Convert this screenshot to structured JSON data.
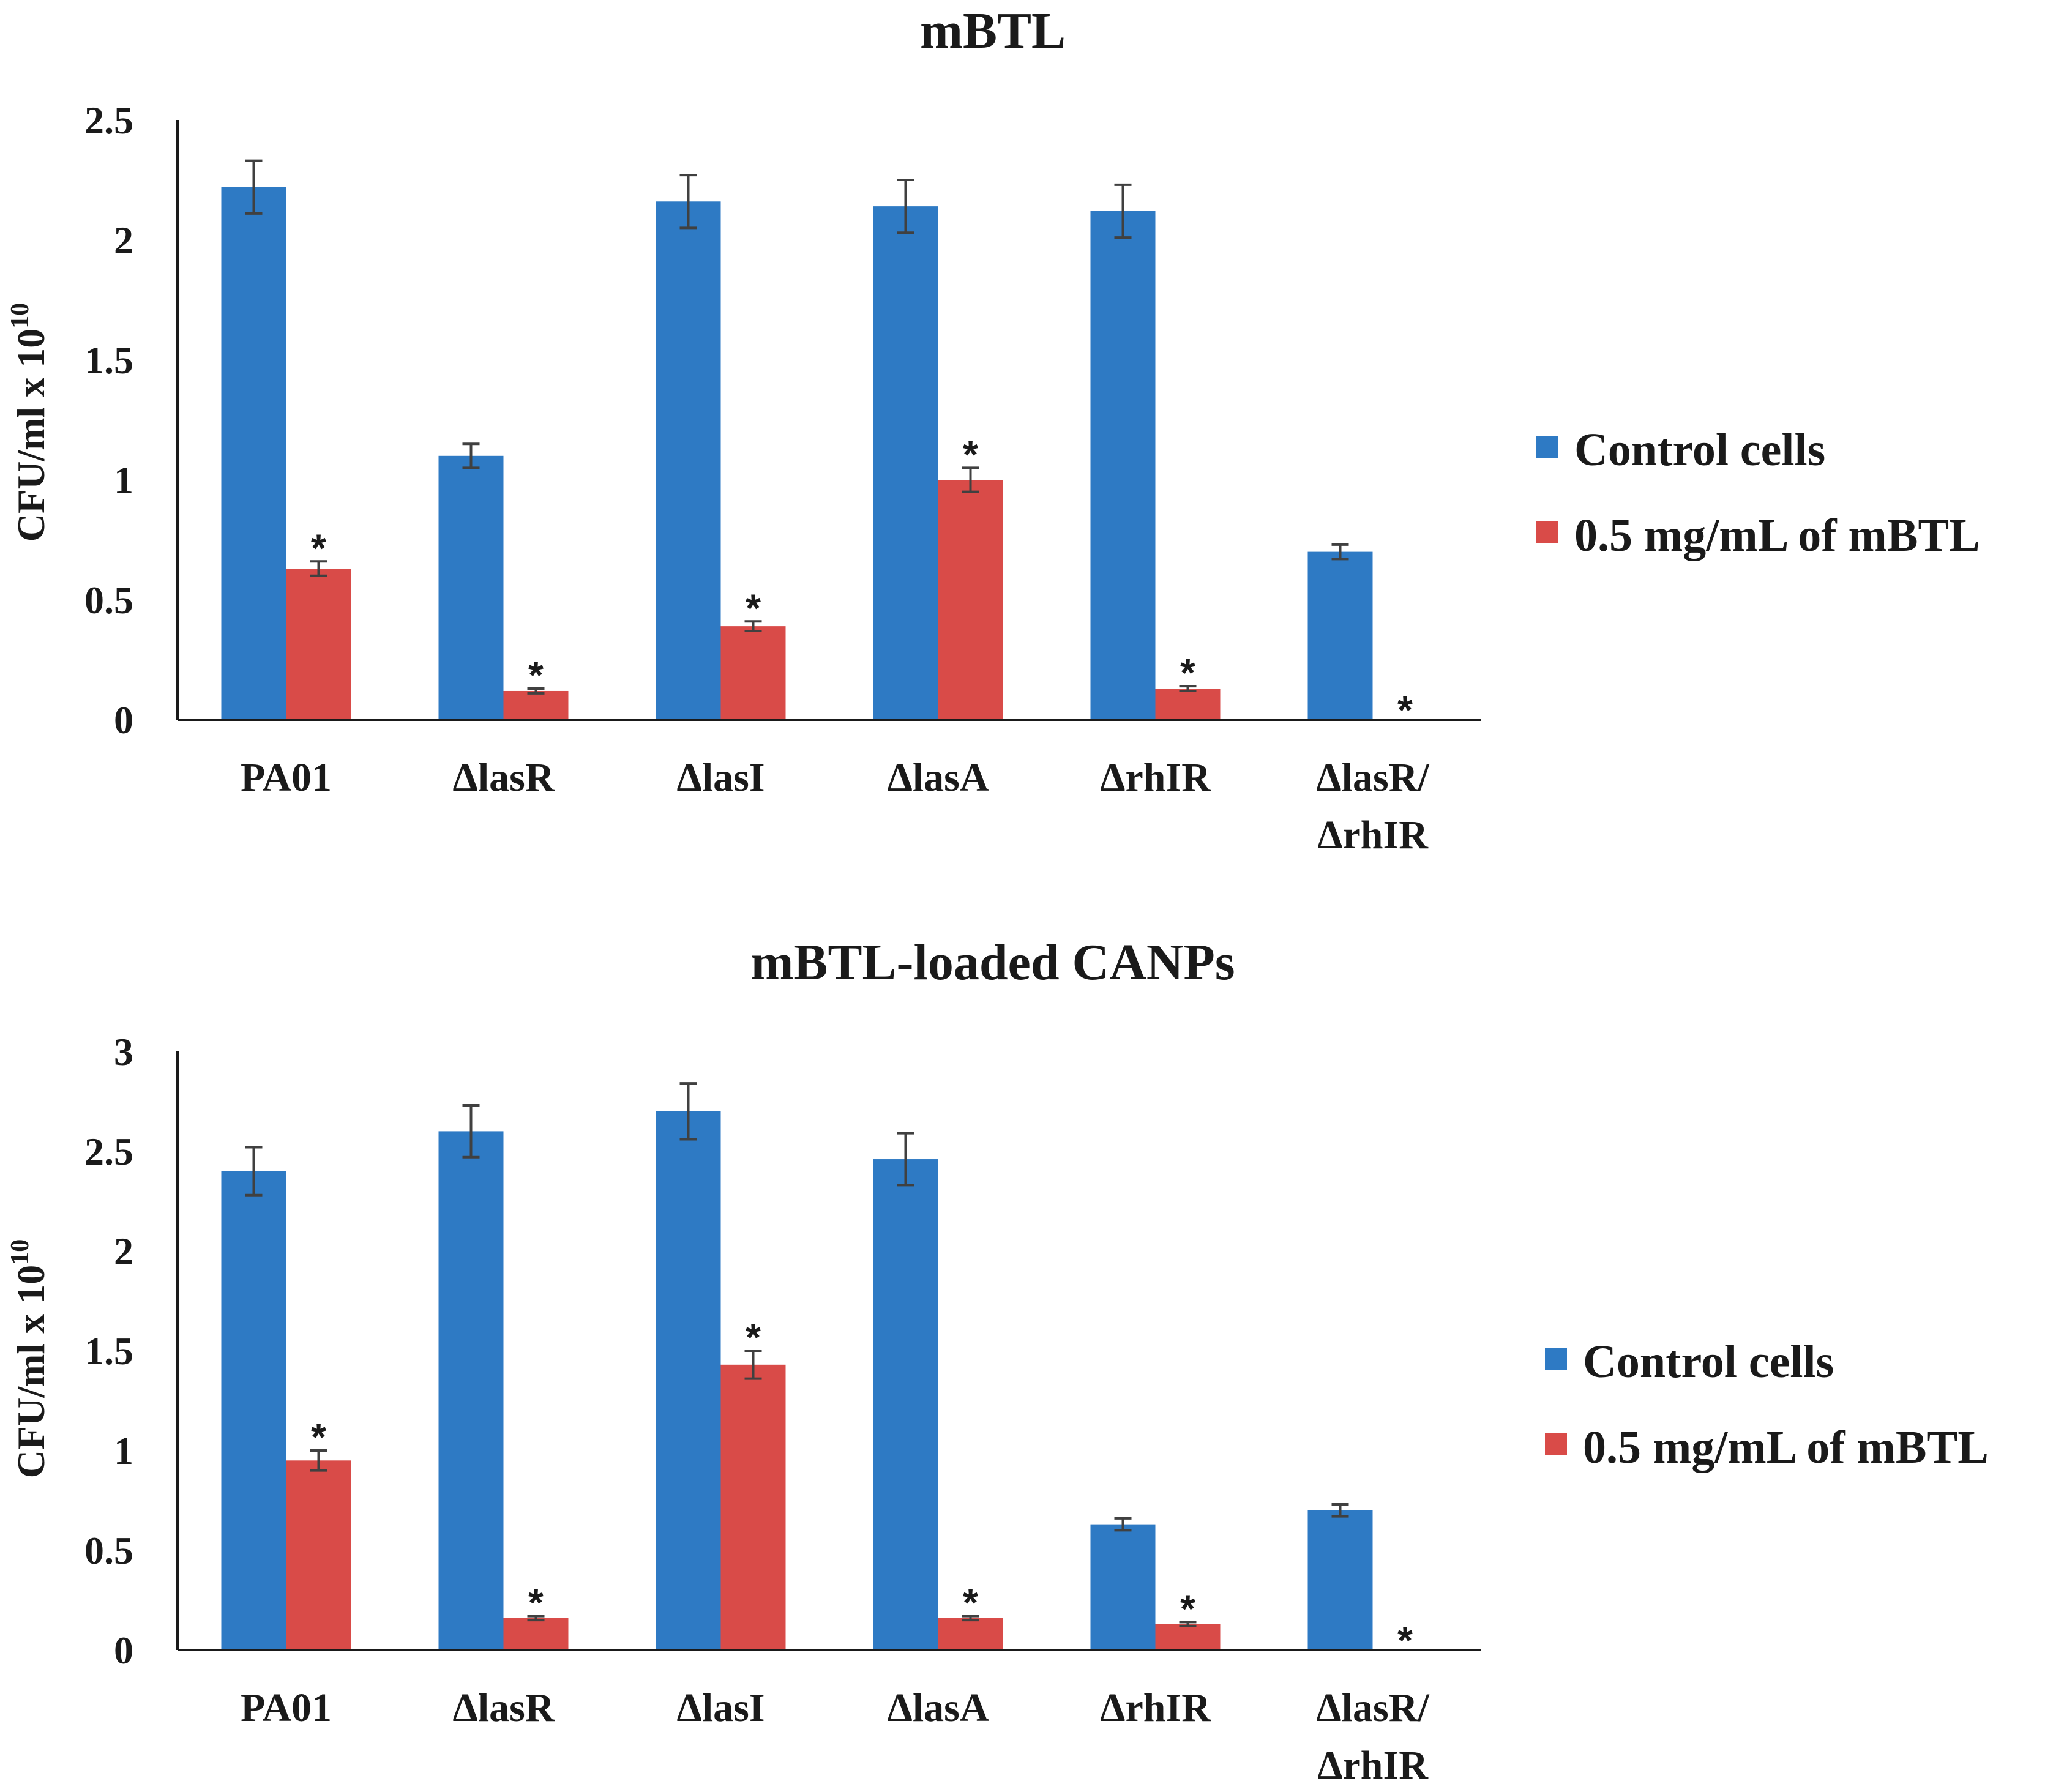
{
  "chart_data": [
    {
      "type": "bar",
      "title": "mBTL",
      "ylabel": "CFU/ml x 10",
      "ylabel_exponent": "10",
      "ylim": [
        0,
        2.5
      ],
      "yticks": [
        "0",
        "0.5",
        "1",
        "1.5",
        "2",
        "2.5"
      ],
      "categories": [
        [
          "PA01"
        ],
        [
          "ΔlasR"
        ],
        [
          "ΔlasI"
        ],
        [
          "ΔlasA"
        ],
        [
          "ΔrhIR"
        ],
        [
          "ΔlasR/",
          "ΔrhIR"
        ]
      ],
      "legend_position": "right",
      "series": [
        {
          "name": "Control cells",
          "color": "#2E7AC4",
          "values": [
            2.22,
            1.1,
            2.16,
            2.14,
            2.12,
            0.7
          ],
          "errors": [
            0.11,
            0.05,
            0.11,
            0.11,
            0.11,
            0.03
          ],
          "annotations": [
            "",
            "",
            "",
            "",
            "",
            ""
          ]
        },
        {
          "name": "0.5 mg/mL of mBTL",
          "color": "#D94B48",
          "values": [
            0.63,
            0.12,
            0.39,
            1.0,
            0.13,
            0.0
          ],
          "errors": [
            0.03,
            0.01,
            0.02,
            0.05,
            0.01,
            0.0
          ],
          "annotations": [
            "*",
            "*",
            "*",
            "*",
            "*",
            "*"
          ]
        }
      ]
    },
    {
      "type": "bar",
      "title": "mBTL-loaded CANPs",
      "ylabel": "CFU/ml x 10",
      "ylabel_exponent": "10",
      "ylim": [
        0,
        3
      ],
      "yticks": [
        "0",
        "0.5",
        "1",
        "1.5",
        "2",
        "2.5",
        "3"
      ],
      "categories": [
        [
          "PA01"
        ],
        [
          "ΔlasR"
        ],
        [
          "ΔlasI"
        ],
        [
          "ΔlasA"
        ],
        [
          "ΔrhIR"
        ],
        [
          "ΔlasR/",
          "ΔrhIR"
        ]
      ],
      "legend_position": "right",
      "series": [
        {
          "name": "Control cells",
          "color": "#2E7AC4",
          "values": [
            2.4,
            2.6,
            2.7,
            2.46,
            0.63,
            0.7
          ],
          "errors": [
            0.12,
            0.13,
            0.14,
            0.13,
            0.03,
            0.03
          ],
          "annotations": [
            "",
            "",
            "",
            "",
            "",
            ""
          ]
        },
        {
          "name": "0.5 mg/mL of mBTL",
          "color": "#D94B48",
          "values": [
            0.95,
            0.16,
            1.43,
            0.16,
            0.13,
            0.0
          ],
          "errors": [
            0.05,
            0.01,
            0.07,
            0.01,
            0.01,
            0.0
          ],
          "annotations": [
            "*",
            "*",
            "*",
            "*",
            "*",
            "*"
          ]
        }
      ]
    }
  ]
}
